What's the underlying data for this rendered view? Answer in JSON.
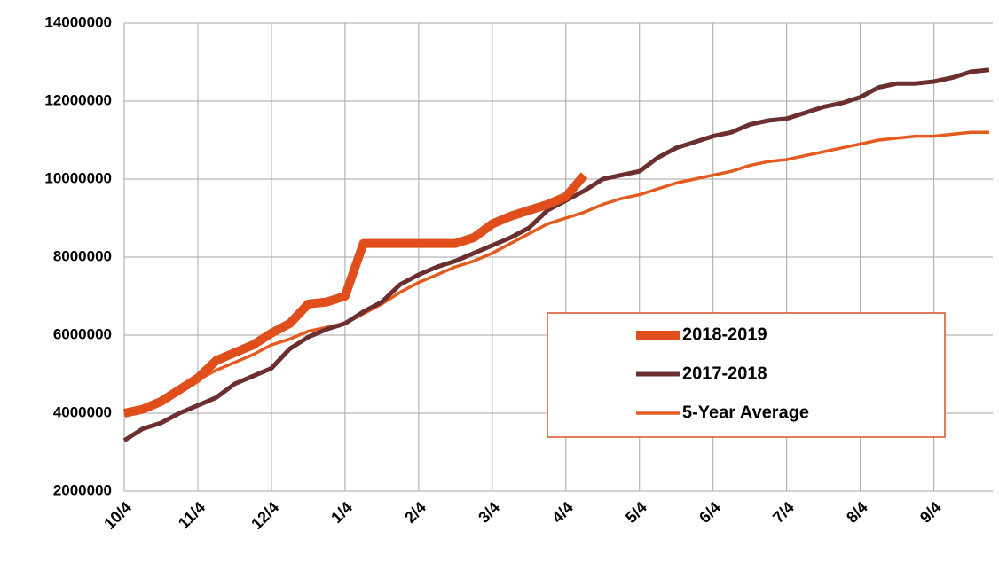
{
  "chart_data": {
    "type": "line",
    "x": [
      0,
      0.25,
      0.5,
      0.75,
      1,
      1.25,
      1.5,
      1.75,
      2,
      2.25,
      2.5,
      2.75,
      3,
      3.25,
      3.5,
      3.75,
      4,
      4.25,
      4.5,
      4.75,
      5,
      5.25,
      5.5,
      5.75,
      6,
      6.25,
      6.5,
      6.75,
      7,
      7.25,
      7.5,
      7.75,
      8,
      8.25,
      8.5,
      8.75,
      9,
      9.25,
      9.5,
      9.75,
      10,
      10.25,
      10.5,
      10.75,
      11,
      11.25,
      11.5,
      11.75
    ],
    "series": [
      {
        "name": "2018-2019",
        "color": "#e04e1c",
        "width": 10,
        "values": [
          4000000,
          4100000,
          4300000,
          4600000,
          4900000,
          5350000,
          5550000,
          5750000,
          6050000,
          6300000,
          6800000,
          6850000,
          7000000,
          8350000,
          8350000,
          8350000,
          8350000,
          8350000,
          8350000,
          8500000,
          8850000,
          9050000,
          9200000,
          9350000,
          9550000,
          10100000,
          null,
          null,
          null,
          null,
          null,
          null,
          null,
          null,
          null,
          null,
          null,
          null,
          null,
          null,
          null,
          null,
          null,
          null,
          null,
          null,
          null,
          null
        ]
      },
      {
        "name": "2017-2018",
        "color": "#6b2f2f",
        "width": 5,
        "values": [
          3300000,
          3600000,
          3750000,
          4000000,
          4200000,
          4400000,
          4750000,
          4950000,
          5150000,
          5650000,
          5950000,
          6150000,
          6300000,
          6600000,
          6850000,
          7300000,
          7550000,
          7750000,
          7900000,
          8100000,
          8300000,
          8500000,
          8750000,
          9200000,
          9450000,
          9700000,
          10000000,
          10100000,
          10200000,
          10550000,
          10800000,
          10950000,
          11100000,
          11200000,
          11400000,
          11500000,
          11550000,
          11700000,
          11850000,
          11950000,
          12100000,
          12350000,
          12450000,
          12450000,
          12500000,
          12600000,
          12750000,
          12800000
        ]
      },
      {
        "name": "5-Year Average",
        "color": "#e35b1f",
        "width": 3.5,
        "values": [
          3950000,
          4100000,
          4300000,
          4550000,
          4850000,
          5100000,
          5300000,
          5500000,
          5750000,
          5900000,
          6100000,
          6200000,
          6300000,
          6550000,
          6800000,
          7100000,
          7350000,
          7550000,
          7750000,
          7900000,
          8100000,
          8350000,
          8600000,
          8850000,
          9000000,
          9150000,
          9350000,
          9500000,
          9600000,
          9750000,
          9900000,
          10000000,
          10100000,
          10200000,
          10350000,
          10450000,
          10500000,
          10600000,
          10700000,
          10800000,
          10900000,
          11000000,
          11050000,
          11100000,
          11100000,
          11150000,
          11200000,
          11200000
        ]
      }
    ],
    "xlim": [
      0,
      11.8
    ],
    "xticks": [
      {
        "value": 0,
        "label": "10/4"
      },
      {
        "value": 1,
        "label": "11/4"
      },
      {
        "value": 2,
        "label": "12/4"
      },
      {
        "value": 3,
        "label": "1/4"
      },
      {
        "value": 4,
        "label": "2/4"
      },
      {
        "value": 5,
        "label": "3/4"
      },
      {
        "value": 6,
        "label": "4/4"
      },
      {
        "value": 7,
        "label": "5/4"
      },
      {
        "value": 8,
        "label": "6/4"
      },
      {
        "value": 9,
        "label": "7/4"
      },
      {
        "value": 10,
        "label": "8/4"
      },
      {
        "value": 11,
        "label": "9/4"
      }
    ],
    "ylim": [
      2000000,
      14000000
    ],
    "yticks": [
      2000000,
      4000000,
      6000000,
      8000000,
      10000000,
      12000000,
      14000000
    ],
    "grid": true,
    "legend": "lower right"
  }
}
